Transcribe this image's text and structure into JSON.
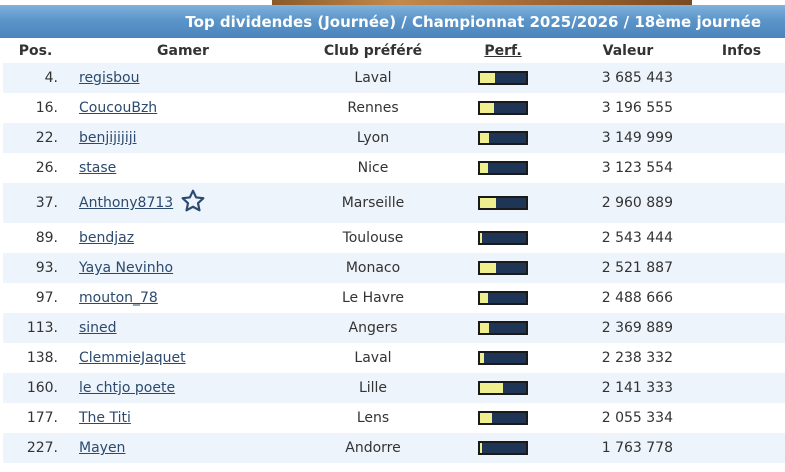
{
  "header": {
    "title": "Top dividendes (Journée) / Championnat 2025/2026 / 18ème journée"
  },
  "columns": {
    "pos": "Pos.",
    "gamer": "Gamer",
    "club": "Club préféré",
    "perf": "Perf.",
    "valeur": "Valeur",
    "infos": "Infos"
  },
  "colors": {
    "title_bar": "#5b95c9",
    "link": "#2b4a6f",
    "perf_bar_bg": "#1f3556",
    "perf_bar_fill": "#f0ef8f",
    "row_alt": "#eef4fb"
  },
  "rows": [
    {
      "pos": "4.",
      "gamer": "regisbou",
      "club": "Laval",
      "perf": 0.33,
      "valeur": "3 685 443"
    },
    {
      "pos": "16.",
      "gamer": "CoucouBzh",
      "club": "Rennes",
      "perf": 0.3,
      "valeur": "3 196 555"
    },
    {
      "pos": "22.",
      "gamer": "benjijijiji",
      "club": "Lyon",
      "perf": 0.2,
      "valeur": "3 149 999"
    },
    {
      "pos": "26.",
      "gamer": "stase",
      "club": "Nice",
      "perf": 0.18,
      "valeur": "3 123 554"
    },
    {
      "pos": "37.",
      "gamer": "Anthony8713",
      "club": "Marseille",
      "perf": 0.35,
      "valeur": "2 960 889",
      "badge": "star-icon"
    },
    {
      "pos": "89.",
      "gamer": "bendjaz",
      "club": "Toulouse",
      "perf": 0.05,
      "valeur": "2 543 444"
    },
    {
      "pos": "93.",
      "gamer": "Yaya Nevinho",
      "club": "Monaco",
      "perf": 0.35,
      "valeur": "2 521 887"
    },
    {
      "pos": "97.",
      "gamer": "mouton_78",
      "club": "Le Havre",
      "perf": 0.18,
      "valeur": "2 488 666"
    },
    {
      "pos": "113.",
      "gamer": "sined",
      "club": "Angers",
      "perf": 0.2,
      "valeur": "2 369 889"
    },
    {
      "pos": "138.",
      "gamer": "ClemmieJaquet",
      "club": "Laval",
      "perf": 0.08,
      "valeur": "2 238 332"
    },
    {
      "pos": "160.",
      "gamer": "le chtjo poete",
      "club": "Lille",
      "perf": 0.5,
      "valeur": "2 141 333"
    },
    {
      "pos": "177.",
      "gamer": "The Titi",
      "club": "Lens",
      "perf": 0.25,
      "valeur": "2 055 334"
    },
    {
      "pos": "227.",
      "gamer": "Mayen",
      "club": "Andorre",
      "perf": 0.05,
      "valeur": "1 763 778"
    }
  ]
}
